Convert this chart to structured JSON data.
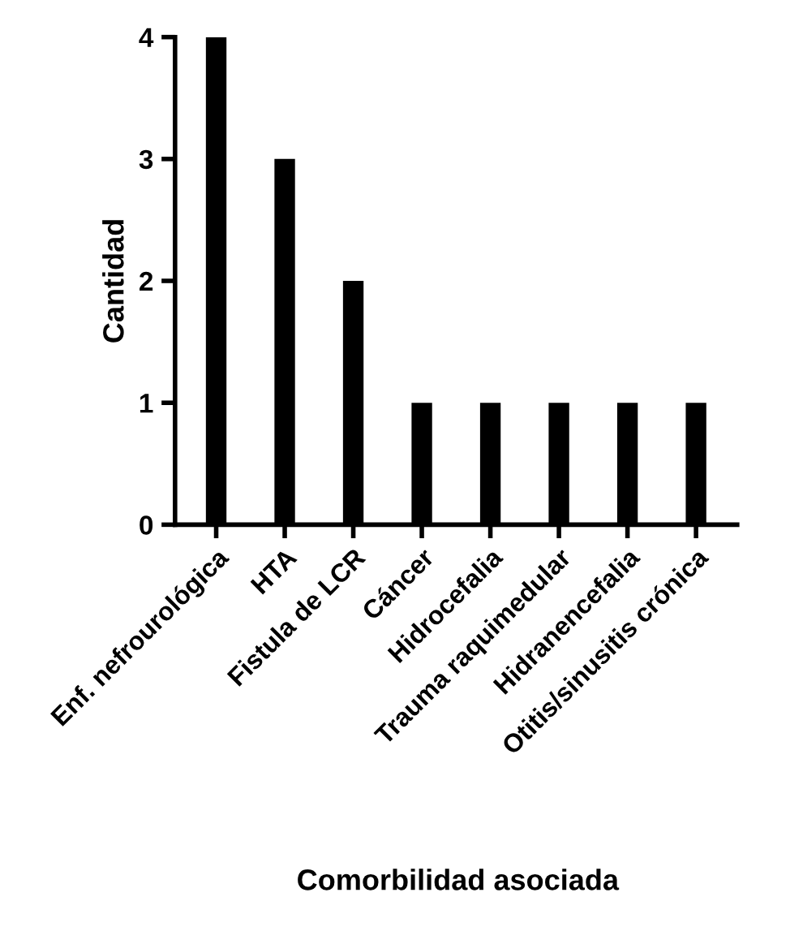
{
  "chart_data": {
    "type": "bar",
    "xlabel": "Comorbilidad asociada",
    "ylabel": "Cantidad",
    "categories": [
      "Enf. nefrourológica",
      "HTA",
      "Fistula de LCR",
      "Cáncer",
      "Hidrocefalia",
      "Trauma raquimedular",
      "Hidranencefalia",
      "Otitis/sinusitis crónica"
    ],
    "values": [
      4,
      3,
      2,
      1,
      1,
      1,
      1,
      1
    ],
    "color": "#000000",
    "ylim": [
      0,
      4
    ],
    "yticks": [
      0,
      1,
      2,
      3,
      4
    ],
    "grid": false
  }
}
